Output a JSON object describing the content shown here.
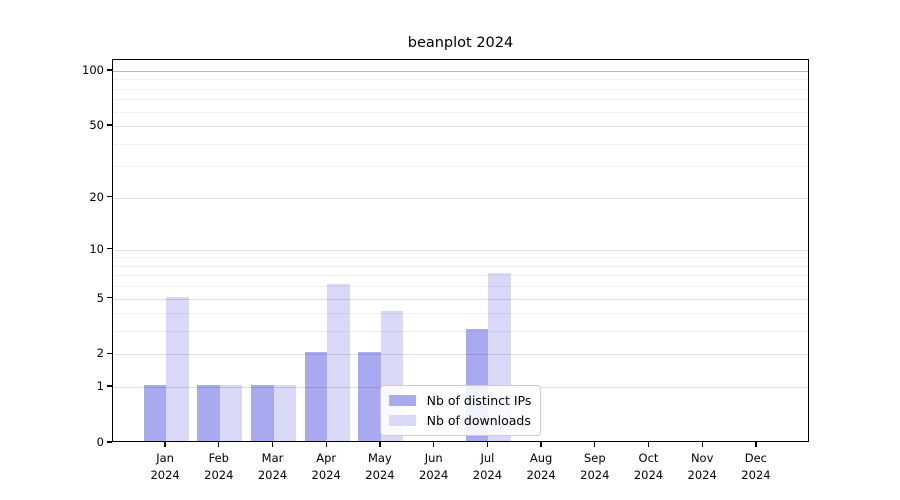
{
  "title": "beanplot 2024",
  "chart_data": {
    "type": "bar",
    "title": "beanplot 2024",
    "categories": [
      "Jan 2024",
      "Feb 2024",
      "Mar 2024",
      "Apr 2024",
      "May 2024",
      "Jun 2024",
      "Jul 2024",
      "Aug 2024",
      "Sep 2024",
      "Oct 2024",
      "Nov 2024",
      "Dec 2024"
    ],
    "series": [
      {
        "name": "Nb of distinct IPs",
        "color": "#a9a9f0",
        "values": [
          1,
          1,
          1,
          2,
          2,
          0,
          3,
          0,
          0,
          0,
          0,
          0
        ]
      },
      {
        "name": "Nb of downloads",
        "color": "#d9d9f7",
        "values": [
          5,
          1,
          1,
          6,
          4,
          0,
          7,
          0,
          0,
          0,
          0,
          0
        ]
      }
    ],
    "yscale": "log1p",
    "ylim": [
      0,
      115
    ],
    "yticks": [
      0,
      1,
      2,
      5,
      10,
      20,
      50,
      100
    ],
    "minor_yticks": [
      3,
      4,
      6,
      7,
      8,
      9,
      30,
      40,
      60,
      70,
      80,
      90
    ],
    "grid": true,
    "legend_position": "lower center"
  },
  "colors": {
    "major_grid": "rgba(0,0,0,0.12)",
    "minor_grid": "rgba(0,0,0,0.055)",
    "top_grid": "rgba(0,0,0,0.28)",
    "axis": "#000000"
  }
}
